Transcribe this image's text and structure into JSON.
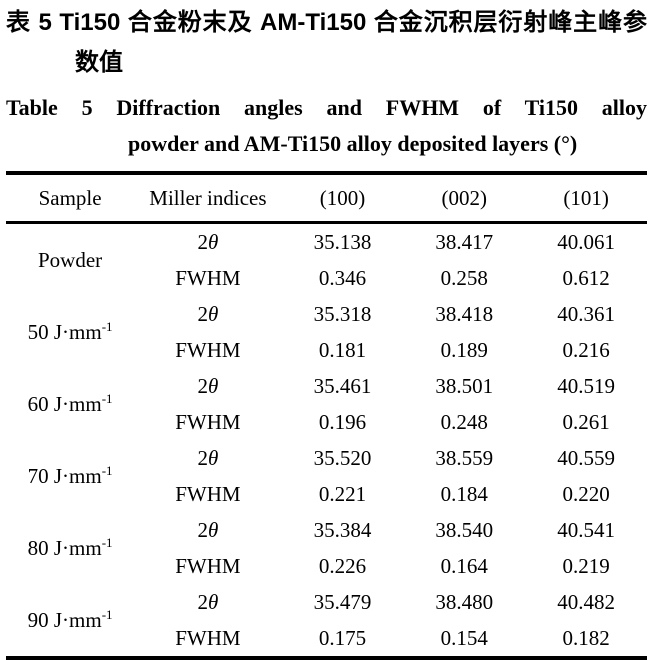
{
  "caption_zh": {
    "line1": "表 5 Ti150 合金粉末及 AM-Ti150 合金沉积层衍射峰主峰参",
    "line2": "数值"
  },
  "caption_en": {
    "line1": "Table 5 Diffraction angles and FWHM of Ti150 alloy",
    "line2": "powder and AM-Ti150 alloy deposited layers (°)"
  },
  "labels": {
    "two": "2",
    "theta": "θ",
    "fwhm": "FWHM"
  },
  "chart_data": {
    "type": "table",
    "columns": [
      "Sample",
      "Miller indices",
      "(100)",
      "(002)",
      "(101)"
    ],
    "groups": [
      {
        "sample": {
          "base": "Powder",
          "sup": ""
        },
        "two_theta": [
          "35.138",
          "38.417",
          "40.061"
        ],
        "fwhm": [
          "0.346",
          "0.258",
          "0.612"
        ]
      },
      {
        "sample": {
          "base": "50 J·mm",
          "sup": "-1"
        },
        "two_theta": [
          "35.318",
          "38.418",
          "40.361"
        ],
        "fwhm": [
          "0.181",
          "0.189",
          "0.216"
        ]
      },
      {
        "sample": {
          "base": "60 J·mm",
          "sup": "-1"
        },
        "two_theta": [
          "35.461",
          "38.501",
          "40.519"
        ],
        "fwhm": [
          "0.196",
          "0.248",
          "0.261"
        ]
      },
      {
        "sample": {
          "base": "70 J·mm",
          "sup": "-1"
        },
        "two_theta": [
          "35.520",
          "38.559",
          "40.559"
        ],
        "fwhm": [
          "0.221",
          "0.184",
          "0.220"
        ]
      },
      {
        "sample": {
          "base": "80 J·mm",
          "sup": "-1"
        },
        "two_theta": [
          "35.384",
          "38.540",
          "40.541"
        ],
        "fwhm": [
          "0.226",
          "0.164",
          "0.219"
        ]
      },
      {
        "sample": {
          "base": "90 J·mm",
          "sup": "-1"
        },
        "two_theta": [
          "35.479",
          "38.480",
          "40.482"
        ],
        "fwhm": [
          "0.175",
          "0.154",
          "0.182"
        ]
      }
    ]
  }
}
